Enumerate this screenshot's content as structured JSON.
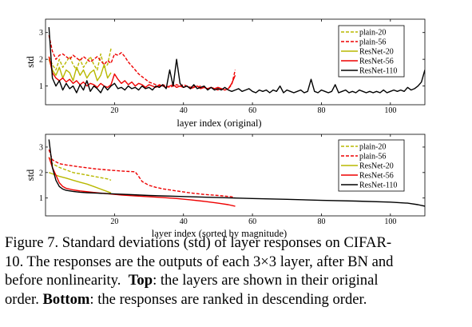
{
  "chart_data": [
    {
      "type": "line",
      "panel": "top",
      "xlabel": "layer index (original)",
      "ylabel": "std",
      "xlim": [
        0,
        110
      ],
      "ylim": [
        0.3,
        3.5
      ],
      "xticks": [
        20,
        40,
        60,
        80,
        100
      ],
      "yticks": [
        1,
        2,
        3
      ],
      "grid": false,
      "legend_position": "top-right",
      "series": [
        {
          "name": "plain-20",
          "color": "#b8b800",
          "dash": "4,2",
          "x": [
            1,
            2,
            3,
            4,
            5,
            6,
            7,
            8,
            9,
            10,
            11,
            12,
            13,
            14,
            15,
            16,
            17,
            18,
            19
          ],
          "y": [
            2.1,
            1.8,
            1.6,
            2.0,
            1.7,
            1.9,
            2.1,
            1.8,
            1.6,
            2.0,
            1.7,
            1.9,
            2.1,
            1.8,
            1.6,
            2.2,
            1.7,
            1.8,
            2.4
          ]
        },
        {
          "name": "plain-56",
          "color": "#ee0000",
          "dash": "4,2",
          "x": [
            1,
            2,
            3,
            4,
            5,
            6,
            7,
            8,
            9,
            10,
            11,
            12,
            13,
            14,
            15,
            16,
            17,
            18,
            19,
            20,
            21,
            22,
            23,
            24,
            25,
            26,
            27,
            28,
            29,
            30,
            31,
            32,
            33,
            34,
            35,
            36,
            37,
            38,
            39,
            40,
            41,
            42,
            43,
            44,
            45,
            46,
            47,
            48,
            49,
            50,
            51,
            52,
            53,
            54,
            55
          ],
          "y": [
            2.9,
            2.3,
            2.0,
            2.15,
            2.2,
            2.1,
            2.0,
            2.15,
            2.05,
            1.95,
            2.1,
            2.0,
            1.9,
            2.0,
            2.1,
            1.95,
            1.8,
            1.95,
            1.85,
            2.2,
            2.15,
            2.25,
            2.1,
            1.9,
            1.75,
            1.6,
            1.45,
            1.35,
            1.25,
            1.15,
            1.1,
            1.05,
            1.0,
            1.05,
            1.0,
            0.95,
            1.0,
            1.05,
            1.0,
            1.05,
            1.0,
            0.95,
            1.0,
            0.95,
            1.0,
            0.95,
            0.9,
            0.95,
            0.9,
            0.85,
            0.9,
            0.85,
            0.9,
            1.05,
            1.6
          ]
        },
        {
          "name": "ResNet-20",
          "color": "#b8b800",
          "dash": "",
          "x": [
            1,
            2,
            3,
            4,
            5,
            6,
            7,
            8,
            9,
            10,
            11,
            12,
            13,
            14,
            15,
            16,
            17,
            18,
            19
          ],
          "y": [
            2.0,
            1.6,
            1.4,
            1.7,
            1.3,
            1.6,
            1.5,
            1.2,
            1.7,
            1.4,
            1.6,
            1.3,
            1.5,
            1.6,
            1.2,
            1.4,
            1.8,
            1.3,
            1.5
          ]
        },
        {
          "name": "ResNet-56",
          "color": "#ee0000",
          "dash": "",
          "x": [
            1,
            2,
            3,
            4,
            5,
            6,
            7,
            8,
            9,
            10,
            11,
            12,
            13,
            14,
            15,
            16,
            17,
            18,
            19,
            20,
            21,
            22,
            23,
            24,
            25,
            26,
            27,
            28,
            29,
            30,
            31,
            32,
            33,
            34,
            35,
            36,
            37,
            38,
            39,
            40,
            41,
            42,
            43,
            44,
            45,
            46,
            47,
            48,
            49,
            50,
            51,
            52,
            53,
            54,
            55
          ],
          "y": [
            2.1,
            1.5,
            1.3,
            1.2,
            1.3,
            1.15,
            1.25,
            1.1,
            1.2,
            1.05,
            1.15,
            1.0,
            1.1,
            1.05,
            0.95,
            1.1,
            1.0,
            0.95,
            1.05,
            1.45,
            1.25,
            1.1,
            1.2,
            1.05,
            1.15,
            1.0,
            1.1,
            1.05,
            0.95,
            1.05,
            1.0,
            0.95,
            1.05,
            1.0,
            0.95,
            1.0,
            1.05,
            0.95,
            1.0,
            0.95,
            1.0,
            0.9,
            0.95,
            1.0,
            0.9,
            0.95,
            0.9,
            0.95,
            0.9,
            0.95,
            0.9,
            0.85,
            0.9,
            1.1,
            1.4
          ]
        },
        {
          "name": "ResNet-110",
          "color": "#000000",
          "dash": "",
          "x": [
            1,
            2,
            3,
            4,
            5,
            6,
            7,
            8,
            9,
            10,
            11,
            12,
            13,
            14,
            15,
            16,
            17,
            18,
            19,
            20,
            21,
            22,
            23,
            24,
            25,
            26,
            27,
            28,
            29,
            30,
            31,
            32,
            33,
            34,
            35,
            36,
            37,
            38,
            39,
            40,
            41,
            42,
            43,
            44,
            45,
            46,
            47,
            48,
            49,
            50,
            51,
            52,
            53,
            54,
            55,
            56,
            57,
            58,
            59,
            60,
            61,
            62,
            63,
            64,
            65,
            66,
            67,
            68,
            69,
            70,
            71,
            72,
            73,
            74,
            75,
            76,
            77,
            78,
            79,
            80,
            81,
            82,
            83,
            84,
            85,
            86,
            87,
            88,
            89,
            90,
            91,
            92,
            93,
            94,
            95,
            96,
            97,
            98,
            99,
            100,
            101,
            102,
            103,
            104,
            105,
            106,
            107,
            108,
            109,
            110
          ],
          "y": [
            3.2,
            1.3,
            1.0,
            1.2,
            0.85,
            1.1,
            0.9,
            1.0,
            0.75,
            1.05,
            0.85,
            1.2,
            0.8,
            1.0,
            0.9,
            0.75,
            1.0,
            0.85,
            1.0,
            1.1,
            0.9,
            0.95,
            0.85,
            1.0,
            0.9,
            0.95,
            0.85,
            1.0,
            0.9,
            0.95,
            0.85,
            1.0,
            0.95,
            1.05,
            0.9,
            1.6,
            1.0,
            2.0,
            1.1,
            0.95,
            1.0,
            0.9,
            1.05,
            0.9,
            0.95,
            1.0,
            0.85,
            0.95,
            0.85,
            0.9,
            0.85,
            0.95,
            0.85,
            0.8,
            0.85,
            0.9,
            0.8,
            0.85,
            0.9,
            0.8,
            0.75,
            0.85,
            0.8,
            0.85,
            0.75,
            0.85,
            0.8,
            1.0,
            0.75,
            0.85,
            0.8,
            0.75,
            0.8,
            0.85,
            0.75,
            0.8,
            1.25,
            0.8,
            0.75,
            0.85,
            0.8,
            0.75,
            0.8,
            1.05,
            0.75,
            0.8,
            0.85,
            0.75,
            0.8,
            0.75,
            0.85,
            0.8,
            0.75,
            0.8,
            0.75,
            0.8,
            0.75,
            0.85,
            0.75,
            0.8,
            0.85,
            0.8,
            0.85,
            0.8,
            0.95,
            0.85,
            0.9,
            1.0,
            1.15,
            1.6
          ]
        }
      ]
    },
    {
      "type": "line",
      "panel": "bottom",
      "xlabel": "layer index (sorted by magnitude)",
      "ylabel": "std",
      "xlim": [
        0,
        110
      ],
      "ylim": [
        0.3,
        3.5
      ],
      "xticks": [
        20,
        40,
        60,
        80,
        100
      ],
      "yticks": [
        1,
        2,
        3
      ],
      "grid": false,
      "legend_position": "top-right",
      "series": [
        {
          "name": "plain-20",
          "color": "#b8b800",
          "dash": "4,2",
          "x": [
            1,
            2,
            4,
            6,
            8,
            10,
            12,
            14,
            16,
            18,
            19
          ],
          "y": [
            2.6,
            2.35,
            2.2,
            2.1,
            2.0,
            1.95,
            1.9,
            1.85,
            1.8,
            1.75,
            1.7
          ]
        },
        {
          "name": "plain-56",
          "color": "#ee0000",
          "dash": "4,2",
          "x": [
            1,
            2,
            4,
            6,
            10,
            14,
            18,
            22,
            26,
            27,
            28,
            30,
            32,
            34,
            38,
            42,
            46,
            50,
            54,
            55
          ],
          "y": [
            2.9,
            2.5,
            2.35,
            2.3,
            2.22,
            2.15,
            2.1,
            2.06,
            2.03,
            1.85,
            1.65,
            1.5,
            1.42,
            1.36,
            1.28,
            1.2,
            1.14,
            1.1,
            1.05,
            1.0
          ]
        },
        {
          "name": "ResNet-20",
          "color": "#b8b800",
          "dash": "",
          "x": [
            1,
            2,
            3,
            4,
            6,
            8,
            10,
            12,
            14,
            16,
            18,
            19
          ],
          "y": [
            2.0,
            1.95,
            1.9,
            1.85,
            1.78,
            1.7,
            1.62,
            1.55,
            1.45,
            1.35,
            1.25,
            1.2
          ]
        },
        {
          "name": "ResNet-56",
          "color": "#ee0000",
          "dash": "",
          "x": [
            1,
            2,
            3,
            4,
            5,
            6,
            8,
            10,
            14,
            18,
            22,
            26,
            30,
            34,
            38,
            42,
            46,
            50,
            53,
            55
          ],
          "y": [
            2.6,
            2.2,
            1.9,
            1.6,
            1.45,
            1.38,
            1.32,
            1.28,
            1.22,
            1.17,
            1.12,
            1.08,
            1.05,
            1.02,
            0.98,
            0.93,
            0.87,
            0.8,
            0.74,
            0.68
          ]
        },
        {
          "name": "ResNet-110",
          "color": "#000000",
          "dash": "",
          "x": [
            1,
            2,
            3,
            4,
            5,
            6,
            8,
            10,
            12,
            15,
            20,
            25,
            30,
            40,
            50,
            60,
            70,
            80,
            90,
            100,
            105,
            108,
            110
          ],
          "y": [
            3.3,
            2.2,
            1.7,
            1.45,
            1.35,
            1.3,
            1.26,
            1.23,
            1.21,
            1.19,
            1.16,
            1.13,
            1.1,
            1.06,
            1.02,
            0.98,
            0.95,
            0.91,
            0.88,
            0.84,
            0.8,
            0.74,
            0.68
          ]
        }
      ]
    }
  ],
  "caption": {
    "line1": "Figure 7. Standard deviations (std) of layer responses on CIFAR-",
    "line2": "10. The responses are the outputs of each 3×3 layer, after BN and",
    "line3": "before nonlinearity.",
    "line3_bold": "Top",
    "line3_rest": ": the layers are shown in their original",
    "line4_pre": "order.",
    "line4_bold": "Bottom",
    "line4_rest": ": the responses are ranked in descending order."
  }
}
